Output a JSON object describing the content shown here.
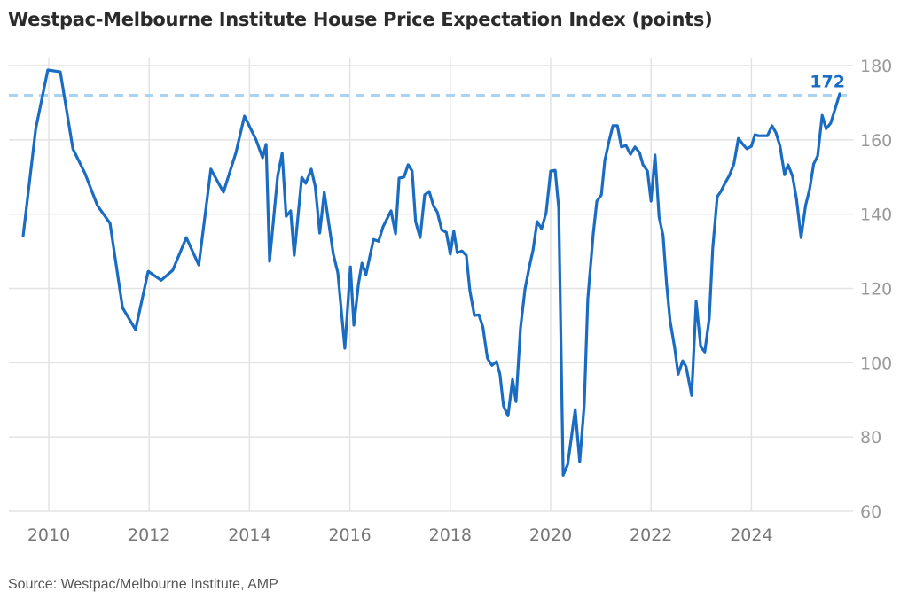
{
  "chart_data": {
    "type": "line",
    "title": "Westpac-Melbourne Institute House Price Expectation Index (points)",
    "source": "Source: Westpac/Melbourne Institute, AMP",
    "xlabel": "",
    "ylabel": "",
    "xlim": [
      2009.5,
      2025.8
    ],
    "ylim": [
      60,
      180
    ],
    "x_ticks": [
      2010,
      2012,
      2014,
      2016,
      2018,
      2020,
      2022,
      2024
    ],
    "y_ticks": [
      60,
      80,
      100,
      120,
      140,
      160,
      180
    ],
    "y_axis_side": "right",
    "grid": true,
    "legend": "none",
    "reference_line": {
      "value": 172,
      "label": "172",
      "style": "dashed"
    },
    "series": [
      {
        "name": "House Price Expectation Index",
        "color": "#1a6cc3",
        "x": [
          2009.49,
          2009.74,
          2009.98,
          2010.23,
          2010.48,
          2010.72,
          2010.97,
          2011.22,
          2011.47,
          2011.73,
          2011.98,
          2012.24,
          2012.47,
          2012.74,
          2012.99,
          2013.23,
          2013.48,
          2013.73,
          2013.9,
          2014.13,
          2014.26,
          2014.33,
          2014.4,
          2014.56,
          2014.65,
          2014.73,
          2014.82,
          2014.89,
          2015.04,
          2015.12,
          2015.23,
          2015.31,
          2015.4,
          2015.49,
          2015.67,
          2015.76,
          2015.9,
          2016.01,
          2016.08,
          2016.17,
          2016.24,
          2016.32,
          2016.47,
          2016.57,
          2016.66,
          2016.82,
          2016.91,
          2016.98,
          2017.08,
          2017.16,
          2017.24,
          2017.31,
          2017.4,
          2017.49,
          2017.58,
          2017.67,
          2017.74,
          2017.83,
          2017.92,
          2018.0,
          2018.07,
          2018.14,
          2018.23,
          2018.32,
          2018.39,
          2018.48,
          2018.57,
          2018.65,
          2018.74,
          2018.83,
          2018.92,
          2018.99,
          2019.06,
          2019.15,
          2019.24,
          2019.31,
          2019.4,
          2019.49,
          2019.58,
          2019.65,
          2019.73,
          2019.82,
          2019.91,
          2020.0,
          2020.09,
          2020.16,
          2020.25,
          2020.34,
          2020.49,
          2020.58,
          2020.67,
          2020.74,
          2020.85,
          2020.92,
          2021.01,
          2021.08,
          2021.17,
          2021.24,
          2021.33,
          2021.41,
          2021.5,
          2021.59,
          2021.68,
          2021.77,
          2021.84,
          2021.93,
          2022.0,
          2022.08,
          2022.16,
          2022.24,
          2022.31,
          2022.38,
          2022.47,
          2022.54,
          2022.63,
          2022.7,
          2022.81,
          2022.9,
          2022.99,
          2023.07,
          2023.16,
          2023.23,
          2023.32,
          2023.39,
          2023.48,
          2023.56,
          2023.65,
          2023.74,
          2023.83,
          2023.91,
          2024.0,
          2024.07,
          2024.14,
          2024.25,
          2024.32,
          2024.41,
          2024.49,
          2024.57,
          2024.66,
          2024.73,
          2024.82,
          2024.9,
          2024.99,
          2025.08,
          2025.16,
          2025.24,
          2025.32,
          2025.41,
          2025.49,
          2025.58,
          2025.76
        ],
        "values": [
          134.2,
          163,
          178.8,
          178.3,
          157.6,
          151,
          142.3,
          137.5,
          114.8,
          108.9,
          124.6,
          122.2,
          124.9,
          133.7,
          126.3,
          152.1,
          145.9,
          156.6,
          166.4,
          160,
          155.2,
          158.8,
          127.3,
          150.2,
          156.4,
          139.4,
          140.9,
          128.9,
          149.9,
          148.3,
          152.1,
          147.5,
          134.9,
          145.9,
          129.2,
          124.2,
          103.9,
          125.8,
          110.1,
          121.1,
          126.8,
          123.7,
          133.2,
          132.7,
          136.6,
          140.9,
          134.7,
          149.7,
          150,
          153.3,
          151.6,
          138,
          133.7,
          145.2,
          146.1,
          142.1,
          140.6,
          135.8,
          135.1,
          129.2,
          135.4,
          129.6,
          130.1,
          128.9,
          119.4,
          112.7,
          112.9,
          109.6,
          101.2,
          99.3,
          100.3,
          96.9,
          88.4,
          85.7,
          95.5,
          89.5,
          109.4,
          119.9,
          126.1,
          130.4,
          138,
          136.1,
          140.4,
          151.6,
          151.8,
          141.6,
          69.7,
          72.6,
          87.4,
          73.3,
          88.8,
          117.2,
          134.9,
          143.5,
          145.2,
          154.5,
          160,
          163.8,
          163.8,
          158.1,
          158.5,
          156.1,
          158.1,
          156.6,
          153.3,
          151.6,
          143.5,
          155.9,
          139.2,
          134.2,
          121.3,
          111.3,
          104.1,
          96.9,
          100.5,
          98.9,
          91.2,
          116.5,
          104.3,
          102.9,
          112,
          130.8,
          144.7,
          146.1,
          148.5,
          150.4,
          153.5,
          160.4,
          158.8,
          157.6,
          158.3,
          161.4,
          161.1,
          161.1,
          161.1,
          163.8,
          161.9,
          158.3,
          150.6,
          153.3,
          150.2,
          144,
          133.7,
          142.3,
          146.8,
          153.5,
          155.7,
          166.6,
          163,
          164.5,
          172.4
        ]
      }
    ]
  }
}
